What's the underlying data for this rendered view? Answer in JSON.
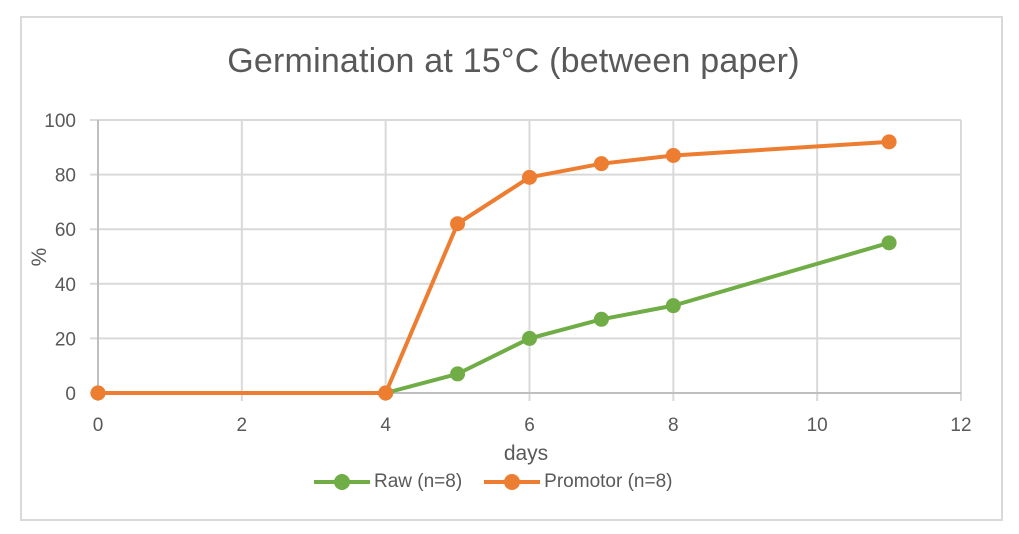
{
  "chart_data": {
    "type": "line",
    "title": "Germination at 15°C  (between paper)",
    "xlabel": "days",
    "ylabel": "%",
    "xlim": [
      0,
      12
    ],
    "ylim": [
      0,
      100
    ],
    "x_ticks": [
      0,
      2,
      4,
      6,
      8,
      10,
      12
    ],
    "y_ticks": [
      0,
      20,
      40,
      60,
      80,
      100
    ],
    "grid": true,
    "legend_position": "bottom",
    "series": [
      {
        "name": "Raw (n=8)",
        "color": "#70ad47",
        "x": [
          0,
          4,
          5,
          6,
          7,
          8,
          11
        ],
        "values": [
          0,
          0,
          7,
          20,
          27,
          32,
          55
        ]
      },
      {
        "name": "Promotor (n=8)",
        "color": "#ed7d31",
        "x": [
          0,
          4,
          5,
          6,
          7,
          8,
          11
        ],
        "values": [
          0,
          0,
          62,
          79,
          84,
          87,
          92
        ]
      }
    ]
  },
  "colors": {
    "gridline": "#d9d9d9",
    "text": "#595959",
    "border": "#d9d9d9"
  }
}
